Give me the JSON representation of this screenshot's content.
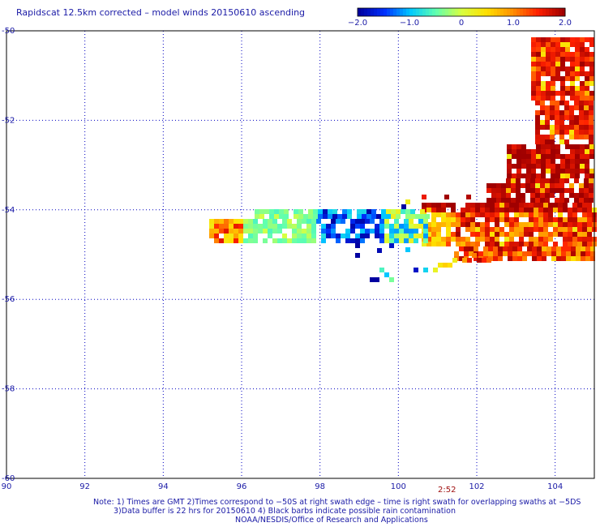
{
  "title": "Rapidscat 12.5km corrected – model winds 20150610 ascending",
  "colorbar": {
    "ticks": [
      "−2.0",
      "−1.0",
      "0",
      "1.0",
      "2.0"
    ],
    "tick_values": [
      -2.0,
      -1.0,
      0,
      1.0,
      2.0
    ],
    "colors": [
      "#0000a0",
      "#0030ff",
      "#00c8ff",
      "#60ffb0",
      "#d8ff40",
      "#ffe000",
      "#ff9000",
      "#ff2000",
      "#a00000"
    ]
  },
  "map": {
    "lon_range": [
      90,
      105
    ],
    "lat_range": [
      -60,
      -50
    ],
    "x_ticks": [
      "90",
      "92",
      "94",
      "96",
      "98",
      "100",
      "102",
      "104"
    ],
    "y_ticks": [
      "-50",
      "-52",
      "-54",
      "-56",
      "-58",
      "-60"
    ],
    "grid_color": "#0000c0",
    "grid_style": "dotted"
  },
  "swath_time": "2:52",
  "notes": {
    "line1": "Note: 1) Times are GMT 2)Times correspond to −50S at right swath edge – time is right swath for overlapping swaths at −5DS",
    "line2": "3)Data buffer is 22 hrs for 20150610 4) Black barbs indicate possible rain contamination",
    "line3": "NOAA/NESDIS/Office of Research and Applications"
  }
}
